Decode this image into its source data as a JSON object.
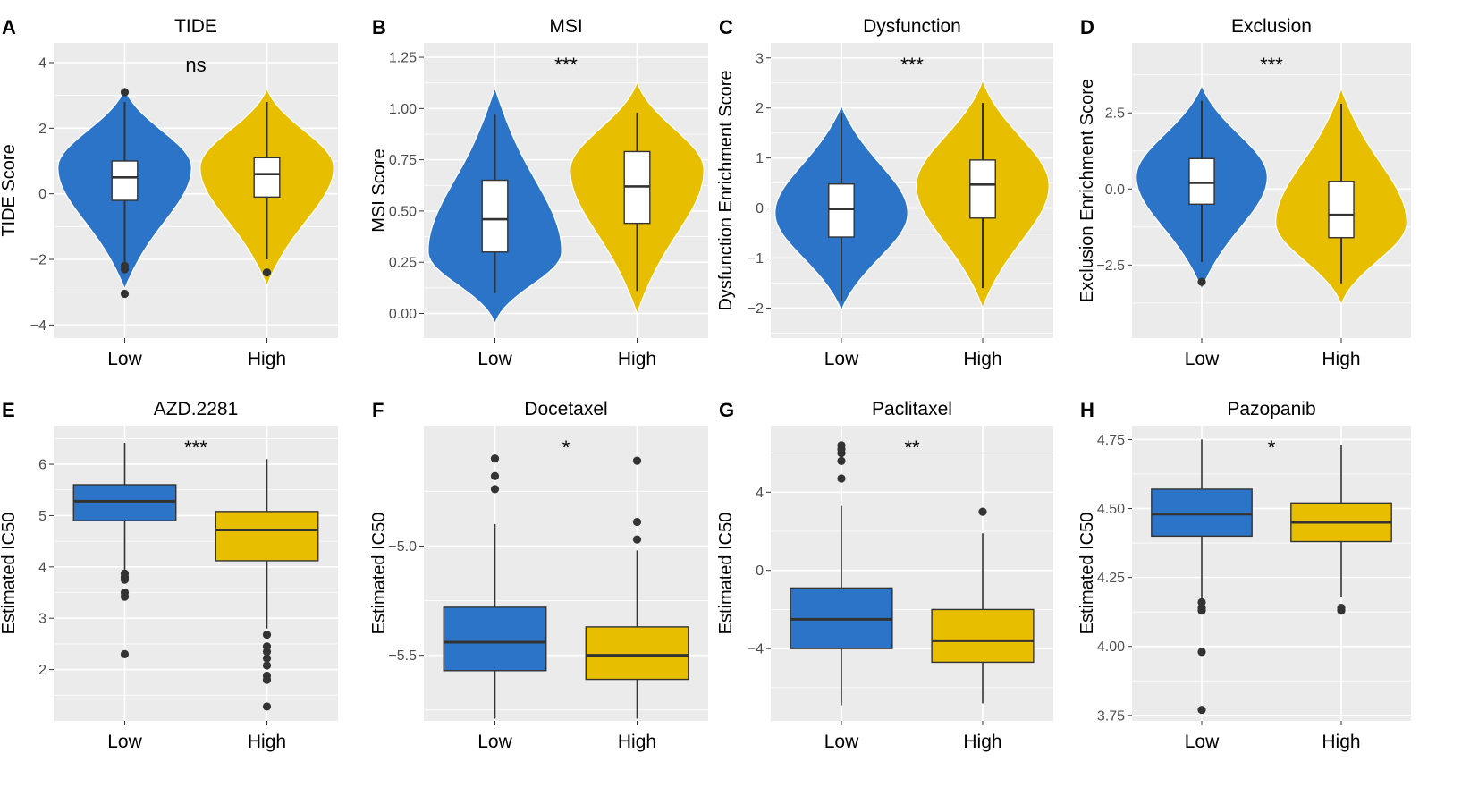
{
  "colors": {
    "low": "#2b74c7",
    "high": "#e8bf00",
    "panel_bg": "#ebebeb",
    "grid": "#ffffff",
    "outlier": "#333333"
  },
  "chart_data": [
    {
      "panel": "A",
      "type": "violin",
      "title": "TIDE",
      "ylabel": "TIDE Score",
      "significance": "ns",
      "categories": [
        "Low",
        "High"
      ],
      "ylim": [
        -4.4,
        4.6
      ],
      "yticks": [
        4,
        2,
        0,
        -2,
        -4
      ],
      "ytick_labels": [
        "4",
        "2",
        "0",
        "−2",
        "−4"
      ],
      "series": [
        {
          "name": "Low",
          "violin_range": [
            -2.9,
            3.2
          ],
          "density_center": 0.8,
          "box": {
            "whisker_low": -2.1,
            "q1": -0.2,
            "median": 0.5,
            "q3": 1.0,
            "whisker_high": 2.8
          },
          "outliers": [
            3.1,
            -2.2,
            -2.3,
            -3.05
          ]
        },
        {
          "name": "High",
          "violin_range": [
            -2.8,
            3.2
          ],
          "density_center": 0.8,
          "box": {
            "whisker_low": -2.0,
            "q1": -0.1,
            "median": 0.6,
            "q3": 1.1,
            "whisker_high": 2.8
          },
          "outliers": [
            -2.4
          ]
        }
      ]
    },
    {
      "panel": "B",
      "type": "violin",
      "title": "MSI",
      "ylabel": "MSI Score",
      "significance": "***",
      "categories": [
        "Low",
        "High"
      ],
      "ylim": [
        -0.12,
        1.32
      ],
      "yticks": [
        1.25,
        1.0,
        0.75,
        0.5,
        0.25,
        0.0
      ],
      "ytick_labels": [
        "1.25",
        "1.00",
        "0.75",
        "0.50",
        "0.25",
        "0.00"
      ],
      "series": [
        {
          "name": "Low",
          "violin_range": [
            -0.05,
            1.1
          ],
          "density_center": 0.3,
          "box": {
            "whisker_low": 0.1,
            "q1": 0.3,
            "median": 0.46,
            "q3": 0.65,
            "whisker_high": 0.97
          },
          "outliers": []
        },
        {
          "name": "High",
          "violin_range": [
            0.0,
            1.13
          ],
          "density_center": 0.7,
          "box": {
            "whisker_low": 0.11,
            "q1": 0.44,
            "median": 0.62,
            "q3": 0.79,
            "whisker_high": 0.98
          },
          "outliers": []
        }
      ]
    },
    {
      "panel": "C",
      "type": "violin",
      "title": "Dysfunction",
      "ylabel": "Dysfunction Enrichment Score",
      "significance": "***",
      "categories": [
        "Low",
        "High"
      ],
      "ylim": [
        -2.6,
        3.3
      ],
      "yticks": [
        3,
        2,
        1,
        0,
        -1,
        -2
      ],
      "ytick_labels": [
        "3",
        "2",
        "1",
        "0",
        "−1",
        "−2"
      ],
      "series": [
        {
          "name": "Low",
          "violin_range": [
            -2.05,
            2.05
          ],
          "density_center": -0.1,
          "box": {
            "whisker_low": -1.85,
            "q1": -0.58,
            "median": -0.02,
            "q3": 0.48,
            "whisker_high": 1.9
          },
          "outliers": []
        },
        {
          "name": "High",
          "violin_range": [
            -2.0,
            2.55
          ],
          "density_center": 0.45,
          "box": {
            "whisker_low": -1.6,
            "q1": -0.2,
            "median": 0.47,
            "q3": 0.96,
            "whisker_high": 2.1
          },
          "outliers": []
        }
      ]
    },
    {
      "panel": "D",
      "type": "violin",
      "title": "Exclusion",
      "ylabel": "Exclusion Enrichment Score",
      "significance": "***",
      "categories": [
        "Low",
        "High"
      ],
      "ylim": [
        -4.9,
        4.8
      ],
      "yticks": [
        2.5,
        0.0,
        -2.5
      ],
      "ytick_labels": [
        "2.5",
        "0.0",
        "−2.5"
      ],
      "series": [
        {
          "name": "Low",
          "violin_range": [
            -3.3,
            3.4
          ],
          "density_center": 0.4,
          "box": {
            "whisker_low": -2.4,
            "q1": -0.5,
            "median": 0.2,
            "q3": 1.0,
            "whisker_high": 2.9
          },
          "outliers": [
            -3.05
          ]
        },
        {
          "name": "High",
          "violin_range": [
            -3.8,
            3.3
          ],
          "density_center": -1.1,
          "box": {
            "whisker_low": -3.1,
            "q1": -1.6,
            "median": -0.85,
            "q3": 0.25,
            "whisker_high": 2.8
          },
          "outliers": []
        }
      ]
    },
    {
      "panel": "E",
      "type": "box",
      "title": "AZD.2281",
      "ylabel": "Estimated IC50",
      "significance": "***",
      "categories": [
        "Low",
        "High"
      ],
      "ylim": [
        1.0,
        6.75
      ],
      "yticks": [
        6,
        5,
        4,
        3,
        2
      ],
      "ytick_labels": [
        "6",
        "5",
        "4",
        "3",
        "2"
      ],
      "series": [
        {
          "name": "Low",
          "box": {
            "whisker_low": 3.95,
            "q1": 4.9,
            "median": 5.28,
            "q3": 5.6,
            "whisker_high": 6.42
          },
          "outliers": [
            3.87,
            3.8,
            3.75,
            3.5,
            3.42,
            2.3
          ]
        },
        {
          "name": "High",
          "box": {
            "whisker_low": 2.8,
            "q1": 4.12,
            "median": 4.72,
            "q3": 5.08,
            "whisker_high": 6.1
          },
          "outliers": [
            2.68,
            2.45,
            2.35,
            2.22,
            2.08,
            1.88,
            1.8,
            1.28
          ]
        }
      ]
    },
    {
      "panel": "F",
      "type": "box",
      "title": "Docetaxel",
      "ylabel": "Estimated IC50",
      "significance": "*",
      "categories": [
        "Low",
        "High"
      ],
      "ylim": [
        -5.8,
        -4.45
      ],
      "yticks": [
        -5.0,
        -5.5
      ],
      "ytick_labels": [
        "−5.0",
        "−5.5"
      ],
      "series": [
        {
          "name": "Low",
          "box": {
            "whisker_low": -5.79,
            "q1": -5.57,
            "median": -5.44,
            "q3": -5.28,
            "whisker_high": -4.9
          },
          "outliers": [
            -4.6,
            -4.68,
            -4.74
          ]
        },
        {
          "name": "High",
          "box": {
            "whisker_low": -5.79,
            "q1": -5.61,
            "median": -5.5,
            "q3": -5.37,
            "whisker_high": -5.02
          },
          "outliers": [
            -4.61,
            -4.89,
            -4.97
          ]
        }
      ]
    },
    {
      "panel": "G",
      "type": "box",
      "title": "Paclitaxel",
      "ylabel": "Estimated IC50",
      "significance": "**",
      "categories": [
        "Low",
        "High"
      ],
      "ylim": [
        -7.7,
        7.4
      ],
      "yticks": [
        4,
        0,
        -4
      ],
      "ytick_labels": [
        "4",
        "0",
        "−4"
      ],
      "series": [
        {
          "name": "Low",
          "box": {
            "whisker_low": -6.9,
            "q1": -4.0,
            "median": -2.5,
            "q3": -0.9,
            "whisker_high": 3.3
          },
          "outliers": [
            6.4,
            6.2,
            6.0,
            5.6,
            4.7
          ]
        },
        {
          "name": "High",
          "box": {
            "whisker_low": -6.8,
            "q1": -4.7,
            "median": -3.6,
            "q3": -2.0,
            "whisker_high": 1.9
          },
          "outliers": [
            3.0
          ]
        }
      ]
    },
    {
      "panel": "H",
      "type": "box",
      "title": "Pazopanib",
      "ylabel": "Estimated IC50",
      "significance": "*",
      "categories": [
        "Low",
        "High"
      ],
      "ylim": [
        3.73,
        4.8
      ],
      "yticks": [
        4.75,
        4.5,
        4.25,
        4.0,
        3.75
      ],
      "ytick_labels": [
        "4.75",
        "4.50",
        "4.25",
        "4.00",
        "3.75"
      ],
      "series": [
        {
          "name": "Low",
          "box": {
            "whisker_low": 4.17,
            "q1": 4.4,
            "median": 4.48,
            "q3": 4.57,
            "whisker_high": 4.75
          },
          "outliers": [
            4.16,
            4.14,
            4.13,
            3.98,
            3.77
          ]
        },
        {
          "name": "High",
          "box": {
            "whisker_low": 4.18,
            "q1": 4.38,
            "median": 4.45,
            "q3": 4.52,
            "whisker_high": 4.73
          },
          "outliers": [
            4.14,
            4.13
          ]
        }
      ]
    }
  ]
}
